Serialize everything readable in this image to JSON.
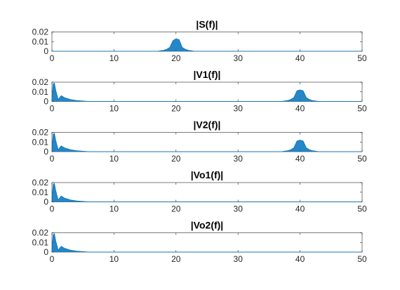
{
  "chart_data": [
    {
      "type": "line",
      "title": "|S(f)|",
      "xlabel": "",
      "ylabel": "",
      "xlim": [
        0,
        50
      ],
      "ylim": [
        0,
        0.02
      ],
      "xticks": [
        "0",
        "10",
        "20",
        "30",
        "40",
        "50"
      ],
      "yticks": [
        "0",
        "0.01",
        "0.02"
      ],
      "grid": false,
      "series": [
        {
          "color": "#0072BD",
          "x": [
            0,
            17,
            17.5,
            18,
            18.5,
            19,
            19.5,
            20,
            20.5,
            21,
            21.5,
            22,
            22.5,
            23,
            50
          ],
          "y": [
            0,
            0,
            0.0005,
            0.001,
            0.002,
            0.004,
            0.011,
            0.013,
            0.012,
            0.004,
            0.002,
            0.001,
            0.0005,
            0,
            0
          ]
        }
      ]
    },
    {
      "type": "line",
      "title": "|V1(f)|",
      "xlabel": "",
      "ylabel": "",
      "xlim": [
        0,
        50
      ],
      "ylim": [
        0,
        0.02
      ],
      "xticks": [
        "0",
        "10",
        "20",
        "30",
        "40",
        "50"
      ],
      "yticks": [
        "0",
        "0.01",
        "0.02"
      ],
      "grid": false,
      "series": [
        {
          "color": "#0072BD",
          "x": [
            0,
            0.2,
            0.4,
            0.6,
            1,
            1.5,
            2,
            3,
            4,
            6,
            37,
            37.5,
            38,
            38.5,
            39,
            39.5,
            40,
            40.5,
            41,
            41.5,
            42,
            42.5,
            43,
            50
          ],
          "y": [
            0.003,
            0.018,
            0.019,
            0.012,
            0.002,
            0.006,
            0.004,
            0.002,
            0.001,
            0,
            0,
            0.0005,
            0.001,
            0.002,
            0.004,
            0.011,
            0.012,
            0.011,
            0.004,
            0.002,
            0.001,
            0.0005,
            0,
            0
          ]
        }
      ]
    },
    {
      "type": "line",
      "title": "|V2(f)|",
      "xlabel": "",
      "ylabel": "",
      "xlim": [
        0,
        50
      ],
      "ylim": [
        0,
        0.02
      ],
      "xticks": [
        "0",
        "10",
        "20",
        "30",
        "40",
        "50"
      ],
      "yticks": [
        "0",
        "0.01",
        "0.02"
      ],
      "grid": false,
      "series": [
        {
          "color": "#0072BD",
          "x": [
            0,
            0.2,
            0.4,
            0.6,
            1,
            1.5,
            2,
            3,
            4,
            6,
            37,
            37.5,
            38,
            38.5,
            39,
            39.5,
            40,
            40.5,
            41,
            41.5,
            42,
            42.5,
            43,
            50
          ],
          "y": [
            0.003,
            0.018,
            0.019,
            0.012,
            0.002,
            0.006,
            0.004,
            0.002,
            0.001,
            0,
            0,
            0.0005,
            0.001,
            0.002,
            0.004,
            0.011,
            0.012,
            0.011,
            0.004,
            0.002,
            0.001,
            0.0005,
            0,
            0
          ]
        }
      ]
    },
    {
      "type": "line",
      "title": "|Vo1(f)|",
      "xlabel": "",
      "ylabel": "",
      "xlim": [
        0,
        50
      ],
      "ylim": [
        0,
        0.02
      ],
      "xticks": [
        "0",
        "10",
        "20",
        "30",
        "40",
        "50"
      ],
      "yticks": [
        "0",
        "0.01",
        "0.02"
      ],
      "grid": false,
      "series": [
        {
          "color": "#0072BD",
          "x": [
            0,
            0.2,
            0.4,
            0.6,
            1,
            1.5,
            2,
            3,
            4,
            6,
            50
          ],
          "y": [
            0.003,
            0.018,
            0.019,
            0.012,
            0.002,
            0.006,
            0.004,
            0.002,
            0.001,
            0,
            0
          ]
        }
      ]
    },
    {
      "type": "line",
      "title": "|Vo2(f)|",
      "xlabel": "",
      "ylabel": "",
      "xlim": [
        0,
        50
      ],
      "ylim": [
        0,
        0.02
      ],
      "xticks": [
        "0",
        "10",
        "20",
        "30",
        "40",
        "50"
      ],
      "yticks": [
        "0",
        "0.01",
        "0.02"
      ],
      "grid": false,
      "series": [
        {
          "color": "#0072BD",
          "x": [
            0,
            0.2,
            0.4,
            0.6,
            1,
            1.5,
            2,
            3,
            4,
            6,
            50
          ],
          "y": [
            0.003,
            0.018,
            0.019,
            0.012,
            0.002,
            0.006,
            0.004,
            0.002,
            0.001,
            0,
            0
          ]
        }
      ]
    }
  ]
}
